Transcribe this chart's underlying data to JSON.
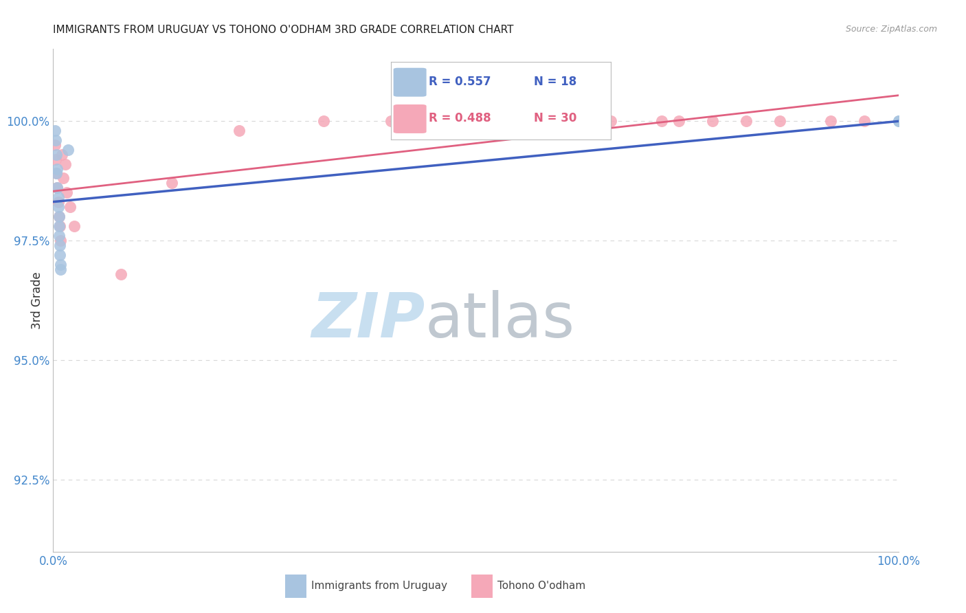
{
  "title": "IMMIGRANTS FROM URUGUAY VS TOHONO O'ODHAM 3RD GRADE CORRELATION CHART",
  "source": "Source: ZipAtlas.com",
  "ylabel": "3rd Grade",
  "yticks": [
    92.5,
    95.0,
    97.5,
    100.0
  ],
  "ytick_labels": [
    "92.5%",
    "95.0%",
    "97.5%",
    "100.0%"
  ],
  "xlim": [
    0.0,
    100.0
  ],
  "ylim": [
    91.0,
    101.5
  ],
  "blue_scatter_color": "#a8c4e0",
  "pink_scatter_color": "#f5a8b8",
  "line_blue_color": "#4060c0",
  "line_pink_color": "#e06080",
  "tick_label_color": "#4488cc",
  "grid_color": "#d8d8d8",
  "title_color": "#222222",
  "source_color": "#999999",
  "legend_text_blue": "#4060c0",
  "legend_text_pink": "#e06080",
  "legend_label_blue": "Immigrants from Uruguay",
  "legend_label_pink": "Tohono O'odham",
  "blue_x": [
    0.2,
    0.3,
    0.4,
    0.4,
    0.5,
    0.5,
    0.6,
    0.6,
    0.7,
    0.7,
    0.7,
    0.8,
    0.8,
    0.9,
    0.9,
    1.8,
    100.0,
    100.0
  ],
  "blue_y": [
    99.8,
    99.6,
    99.3,
    98.9,
    99.0,
    98.6,
    98.4,
    98.2,
    98.0,
    97.8,
    97.6,
    97.4,
    97.2,
    97.0,
    96.9,
    99.4,
    100.0,
    100.0
  ],
  "pink_x": [
    0.2,
    0.3,
    0.4,
    0.5,
    0.6,
    0.7,
    0.8,
    0.9,
    1.0,
    1.2,
    1.4,
    1.6,
    2.0,
    2.5,
    8.0,
    14.0,
    22.0,
    32.0,
    40.0,
    50.0,
    56.0,
    62.0,
    66.0,
    72.0,
    74.0,
    78.0,
    82.0,
    86.0,
    92.0,
    96.0
  ],
  "pink_y": [
    99.5,
    99.2,
    98.9,
    98.6,
    98.3,
    98.0,
    97.8,
    97.5,
    99.3,
    98.8,
    99.1,
    98.5,
    98.2,
    97.8,
    96.8,
    98.7,
    99.8,
    100.0,
    100.0,
    100.0,
    100.0,
    100.0,
    100.0,
    100.0,
    100.0,
    100.0,
    100.0,
    100.0,
    100.0,
    100.0
  ],
  "blue_line_x0": 0.0,
  "blue_line_y0": 98.2,
  "blue_line_x1": 30.0,
  "blue_line_y1": 100.0,
  "pink_line_x0": 0.0,
  "pink_line_y0": 99.0,
  "pink_line_x1": 100.0,
  "pink_line_y1": 100.15
}
